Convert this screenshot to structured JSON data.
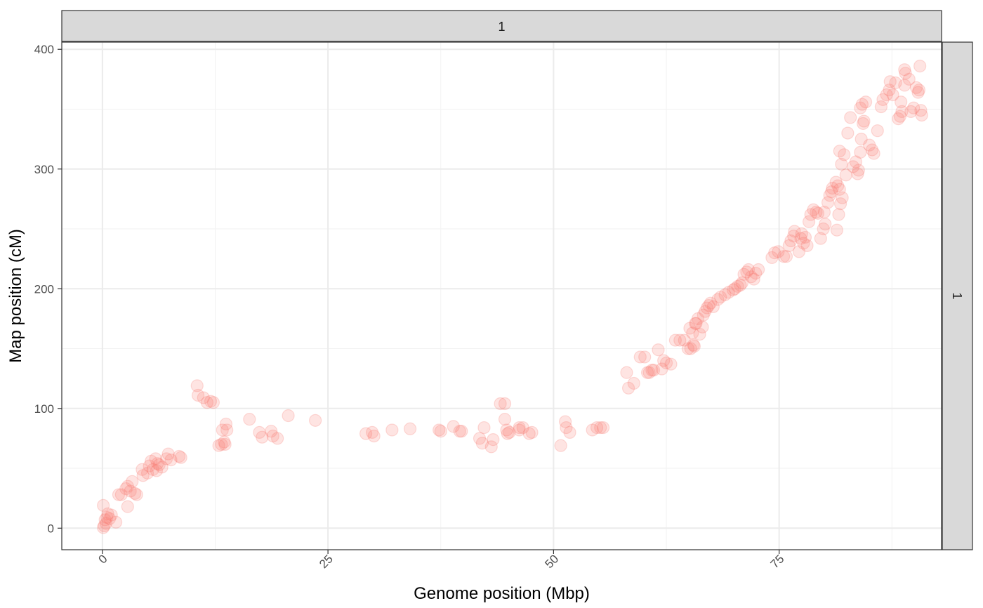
{
  "chart_data": {
    "type": "scatter",
    "xlabel": "Genome position (Mbp)",
    "ylabel": "Map position (cM)",
    "facet_top_label": "1",
    "facet_right_label": "1",
    "xlim": [
      -4.5,
      93
    ],
    "ylim": [
      -18,
      406
    ],
    "x_ticks": [
      0,
      25,
      50,
      75
    ],
    "y_ticks": [
      0,
      100,
      200,
      300,
      400
    ],
    "grid": true,
    "point_color": "#F8766D",
    "point_alpha": 0.2,
    "points": [
      [
        0.1,
        0.5
      ],
      [
        0.2,
        2
      ],
      [
        0.3,
        7
      ],
      [
        0.4,
        4
      ],
      [
        0.5,
        9
      ],
      [
        0.6,
        12
      ],
      [
        0.8,
        8
      ],
      [
        1.0,
        11
      ],
      [
        0.1,
        19
      ],
      [
        1.5,
        5
      ],
      [
        1.8,
        28
      ],
      [
        2.1,
        28
      ],
      [
        2.6,
        33
      ],
      [
        2.8,
        35
      ],
      [
        3.1,
        31
      ],
      [
        2.8,
        18
      ],
      [
        3.3,
        39
      ],
      [
        3.6,
        29
      ],
      [
        3.8,
        28
      ],
      [
        4.4,
        49
      ],
      [
        4.5,
        44
      ],
      [
        5.0,
        46
      ],
      [
        5.2,
        52
      ],
      [
        5.4,
        56
      ],
      [
        5.6,
        49
      ],
      [
        5.9,
        58
      ],
      [
        6.1,
        54
      ],
      [
        6.3,
        53
      ],
      [
        6.0,
        48
      ],
      [
        6.6,
        51
      ],
      [
        7.1,
        58
      ],
      [
        7.3,
        62
      ],
      [
        7.6,
        57
      ],
      [
        8.5,
        60
      ],
      [
        8.7,
        59
      ],
      [
        10.5,
        119
      ],
      [
        10.6,
        111
      ],
      [
        11.2,
        109
      ],
      [
        11.6,
        105
      ],
      [
        12.0,
        106
      ],
      [
        12.3,
        105
      ],
      [
        12.9,
        69
      ],
      [
        13.2,
        70
      ],
      [
        13.5,
        72
      ],
      [
        13.6,
        70
      ],
      [
        13.3,
        82
      ],
      [
        13.7,
        87
      ],
      [
        13.8,
        82
      ],
      [
        16.3,
        91
      ],
      [
        17.4,
        80
      ],
      [
        17.7,
        76
      ],
      [
        18.7,
        81
      ],
      [
        18.9,
        77
      ],
      [
        19.4,
        75
      ],
      [
        20.6,
        94
      ],
      [
        23.6,
        90
      ],
      [
        29.2,
        79
      ],
      [
        29.9,
        80
      ],
      [
        30.1,
        77
      ],
      [
        32.1,
        82
      ],
      [
        34.1,
        83
      ],
      [
        37.3,
        82
      ],
      [
        37.5,
        81
      ],
      [
        38.9,
        85
      ],
      [
        39.6,
        81
      ],
      [
        39.8,
        81
      ],
      [
        41.8,
        75
      ],
      [
        42.1,
        71
      ],
      [
        42.3,
        84
      ],
      [
        43.1,
        68
      ],
      [
        43.3,
        74
      ],
      [
        44.1,
        104
      ],
      [
        44.6,
        104
      ],
      [
        44.6,
        91
      ],
      [
        44.8,
        82
      ],
      [
        44.9,
        79
      ],
      [
        45.1,
        80
      ],
      [
        46.2,
        84
      ],
      [
        46.6,
        84
      ],
      [
        46.2,
        82
      ],
      [
        47.3,
        79
      ],
      [
        47.6,
        80
      ],
      [
        50.8,
        69
      ],
      [
        51.3,
        89
      ],
      [
        51.4,
        84
      ],
      [
        51.8,
        80
      ],
      [
        54.3,
        82
      ],
      [
        54.8,
        84
      ],
      [
        55.2,
        84
      ],
      [
        55.5,
        84
      ],
      [
        58.1,
        130
      ],
      [
        58.3,
        117
      ],
      [
        58.9,
        121
      ],
      [
        59.6,
        143
      ],
      [
        60.1,
        143
      ],
      [
        60.4,
        130
      ],
      [
        60.6,
        130
      ],
      [
        60.9,
        132
      ],
      [
        61.1,
        132
      ],
      [
        61.6,
        149
      ],
      [
        62.0,
        133
      ],
      [
        62.2,
        140
      ],
      [
        62.5,
        138
      ],
      [
        63.0,
        137
      ],
      [
        63.5,
        157
      ],
      [
        64.0,
        157
      ],
      [
        64.5,
        157
      ],
      [
        64.9,
        150
      ],
      [
        65.2,
        150
      ],
      [
        65.5,
        153
      ],
      [
        65.6,
        152
      ],
      [
        65.1,
        167
      ],
      [
        65.4,
        163
      ],
      [
        65.7,
        171
      ],
      [
        65.8,
        171
      ],
      [
        66.0,
        175
      ],
      [
        66.2,
        162
      ],
      [
        66.5,
        168
      ],
      [
        66.6,
        178
      ],
      [
        66.8,
        181
      ],
      [
        67.0,
        184
      ],
      [
        67.2,
        186
      ],
      [
        67.4,
        188
      ],
      [
        67.7,
        185
      ],
      [
        68.2,
        191
      ],
      [
        68.5,
        193
      ],
      [
        69.0,
        195
      ],
      [
        69.4,
        197
      ],
      [
        69.9,
        199
      ],
      [
        70.1,
        200
      ],
      [
        70.4,
        202
      ],
      [
        70.7,
        203
      ],
      [
        70.9,
        205
      ],
      [
        71.1,
        212
      ],
      [
        71.4,
        214
      ],
      [
        71.6,
        216
      ],
      [
        71.9,
        210
      ],
      [
        72.2,
        208
      ],
      [
        72.4,
        213
      ],
      [
        72.7,
        216
      ],
      [
        74.2,
        226
      ],
      [
        74.5,
        230
      ],
      [
        74.9,
        231
      ],
      [
        75.5,
        227
      ],
      [
        75.8,
        227
      ],
      [
        76.1,
        236
      ],
      [
        76.3,
        240
      ],
      [
        76.6,
        244
      ],
      [
        76.7,
        248
      ],
      [
        77.2,
        231
      ],
      [
        77.4,
        242
      ],
      [
        77.5,
        246
      ],
      [
        77.7,
        238
      ],
      [
        77.9,
        243
      ],
      [
        78.1,
        236
      ],
      [
        78.3,
        256
      ],
      [
        78.5,
        262
      ],
      [
        78.8,
        266
      ],
      [
        79.1,
        264
      ],
      [
        79.3,
        263
      ],
      [
        79.6,
        242
      ],
      [
        79.9,
        250
      ],
      [
        80.1,
        254
      ],
      [
        80.0,
        264
      ],
      [
        80.4,
        272
      ],
      [
        80.6,
        278
      ],
      [
        80.8,
        281
      ],
      [
        80.9,
        284
      ],
      [
        81.3,
        289
      ],
      [
        81.5,
        286
      ],
      [
        81.7,
        283
      ],
      [
        81.8,
        271
      ],
      [
        82.0,
        276
      ],
      [
        81.4,
        249
      ],
      [
        81.6,
        262
      ],
      [
        81.7,
        315
      ],
      [
        81.9,
        304
      ],
      [
        82.2,
        312
      ],
      [
        82.4,
        295
      ],
      [
        82.6,
        330
      ],
      [
        82.9,
        343
      ],
      [
        83.2,
        302
      ],
      [
        83.5,
        306
      ],
      [
        83.7,
        296
      ],
      [
        83.8,
        299
      ],
      [
        84.0,
        314
      ],
      [
        84.1,
        325
      ],
      [
        84.3,
        338
      ],
      [
        84.4,
        340
      ],
      [
        84.0,
        351
      ],
      [
        84.2,
        354
      ],
      [
        84.6,
        356
      ],
      [
        85.0,
        320
      ],
      [
        85.3,
        316
      ],
      [
        85.5,
        313
      ],
      [
        85.9,
        332
      ],
      [
        86.3,
        352
      ],
      [
        86.5,
        358
      ],
      [
        86.9,
        362
      ],
      [
        87.2,
        366
      ],
      [
        87.3,
        373
      ],
      [
        87.6,
        362
      ],
      [
        87.9,
        372
      ],
      [
        88.2,
        342
      ],
      [
        88.4,
        344
      ],
      [
        88.6,
        348
      ],
      [
        88.9,
        383
      ],
      [
        89.0,
        380
      ],
      [
        89.4,
        375
      ],
      [
        89.6,
        348
      ],
      [
        89.9,
        351
      ],
      [
        90.2,
        368
      ],
      [
        90.4,
        364
      ],
      [
        90.5,
        366
      ],
      [
        90.7,
        349
      ],
      [
        90.8,
        345
      ],
      [
        90.6,
        386
      ],
      [
        88.9,
        370
      ],
      [
        88.5,
        356
      ]
    ]
  }
}
